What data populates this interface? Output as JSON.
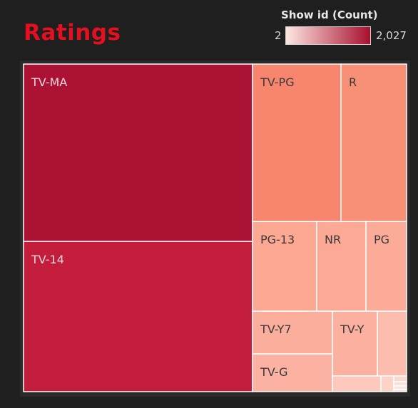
{
  "title": "Ratings",
  "legend": {
    "title": "Show id (Count)",
    "min_label": "2",
    "max_label": "2,027",
    "min_color": "#fde7e1",
    "max_color": "#a8102f"
  },
  "chart_data": {
    "type": "treemap",
    "measure": "Show id (Count)",
    "color_range": [
      2,
      2027
    ],
    "items": [
      {
        "label": "TV-MA",
        "value": 2027,
        "color": "#ab1234"
      },
      {
        "label": "TV-14",
        "value": 1520,
        "color": "#c41d3c"
      },
      {
        "label": "TV-PG",
        "value": 530,
        "color": "#f8866e"
      },
      {
        "label": "R",
        "value": 380,
        "color": "#f89078"
      },
      {
        "label": "PG-13",
        "value": 220,
        "color": "#fca893"
      },
      {
        "label": "NR",
        "value": 150,
        "color": "#fca996"
      },
      {
        "label": "PG",
        "value": 125,
        "color": "#fcab99"
      },
      {
        "label": "TV-Y7",
        "value": 170,
        "color": "#fcae9c"
      },
      {
        "label": "TV-Y",
        "value": 145,
        "color": "#fcb1a0"
      },
      {
        "label": "TV-G",
        "value": 125,
        "color": "#fcb2a2"
      },
      {
        "label": "",
        "value": 60,
        "color": "#fcbcae"
      },
      {
        "label": "",
        "value": 20,
        "color": "#fdc9bd"
      },
      {
        "label": "",
        "value": 10,
        "color": "#fdd3c8"
      },
      {
        "label": "",
        "value": 6,
        "color": "#fdd8ce"
      },
      {
        "label": "",
        "value": 4,
        "color": "#fde0d8"
      },
      {
        "label": "",
        "value": 3,
        "color": "#fde3dc"
      },
      {
        "label": "",
        "value": 2,
        "color": "#fde7e1"
      }
    ]
  }
}
